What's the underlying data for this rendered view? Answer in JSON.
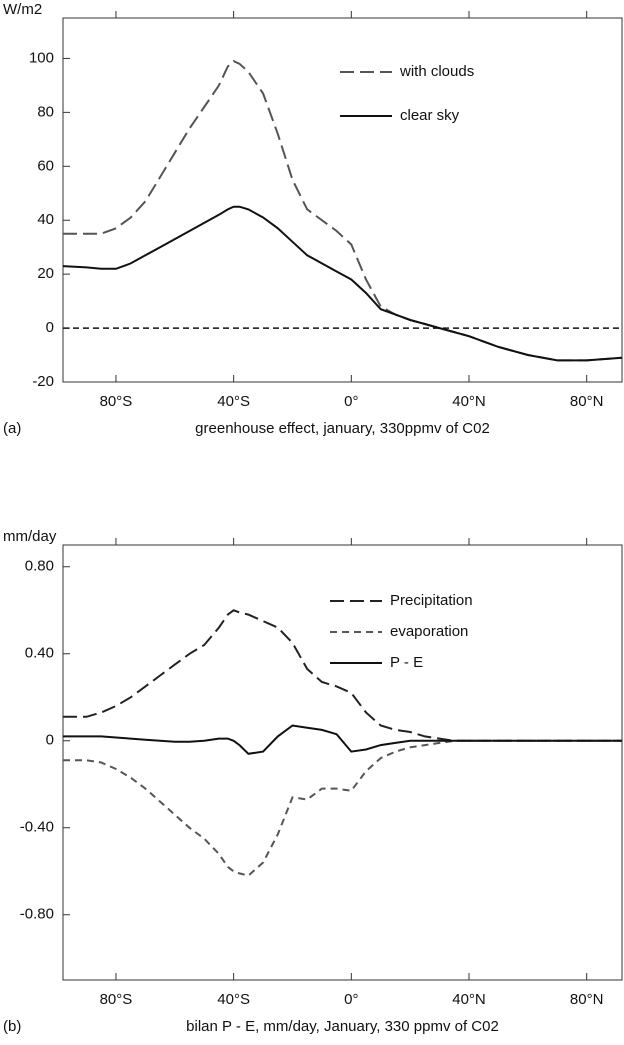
{
  "chart_data": [
    {
      "type": "line",
      "panel_label": "(a)",
      "caption": "greenhouse effect, january, 330ppmv of C02",
      "ylabel": "W/m2",
      "x": [
        -98,
        -90,
        -85,
        -80,
        -75,
        -70,
        -65,
        -60,
        -55,
        -50,
        -45,
        -42,
        -40,
        -38,
        -35,
        -30,
        -25,
        -20,
        -15,
        -10,
        -5,
        0,
        5,
        10,
        15,
        20,
        25,
        30,
        35,
        40,
        50,
        60,
        70,
        80,
        92
      ],
      "series": [
        {
          "name": "with clouds",
          "color": "#555555",
          "style": "long-dash",
          "values": [
            35,
            35,
            35,
            37,
            41,
            47,
            56,
            65,
            74,
            82,
            90,
            97,
            99,
            98,
            95,
            87,
            72,
            55,
            44,
            40,
            36,
            31,
            18,
            8,
            5,
            3,
            1.5,
            0,
            -1.5,
            -3,
            -7,
            -10,
            -12,
            -12,
            -11
          ]
        },
        {
          "name": "clear sky",
          "color": "#111111",
          "style": "solid",
          "values": [
            23,
            22.5,
            22,
            22,
            24,
            27,
            30,
            33,
            36,
            39,
            42,
            44,
            45,
            45,
            44,
            41,
            37,
            32,
            27,
            24,
            21,
            18,
            13,
            7,
            5,
            3,
            1.5,
            0,
            -1.5,
            -3,
            -7,
            -10,
            -12,
            -12,
            -11
          ]
        }
      ],
      "hline": 0,
      "xlim": [
        -98,
        92
      ],
      "xticks": [
        {
          "value": -80,
          "label": "80°S"
        },
        {
          "value": -40,
          "label": "40°S"
        },
        {
          "value": 0,
          "label": "0°"
        },
        {
          "value": 40,
          "label": "40°N"
        },
        {
          "value": 80,
          "label": "80°N"
        }
      ],
      "ylim": [
        -20,
        115
      ],
      "yticks": [
        -20,
        0,
        20,
        40,
        60,
        80,
        100
      ]
    },
    {
      "type": "line",
      "panel_label": "(b)",
      "caption": "bilan P - E, mm/day, January, 330 ppmv of C02",
      "ylabel": "mm/day",
      "x": [
        -98,
        -90,
        -85,
        -80,
        -75,
        -70,
        -65,
        -60,
        -55,
        -50,
        -45,
        -42,
        -40,
        -38,
        -35,
        -30,
        -25,
        -20,
        -15,
        -10,
        -5,
        0,
        5,
        10,
        15,
        20,
        25,
        30,
        35,
        40,
        50,
        60,
        70,
        80,
        92
      ],
      "series": [
        {
          "name": "Precipitation",
          "color": "#222222",
          "style": "long-dash",
          "values": [
            0.11,
            0.11,
            0.13,
            0.16,
            0.2,
            0.25,
            0.3,
            0.35,
            0.4,
            0.44,
            0.52,
            0.58,
            0.6,
            0.59,
            0.58,
            0.55,
            0.52,
            0.45,
            0.33,
            0.27,
            0.25,
            0.22,
            0.13,
            0.07,
            0.05,
            0.04,
            0.02,
            0.01,
            0,
            0,
            0,
            0,
            0,
            0,
            0
          ]
        },
        {
          "name": "evaporation",
          "color": "#555555",
          "style": "short-dash",
          "values": [
            -0.09,
            -0.09,
            -0.1,
            -0.13,
            -0.17,
            -0.22,
            -0.28,
            -0.34,
            -0.4,
            -0.45,
            -0.52,
            -0.58,
            -0.6,
            -0.61,
            -0.62,
            -0.56,
            -0.43,
            -0.26,
            -0.27,
            -0.22,
            -0.22,
            -0.23,
            -0.14,
            -0.08,
            -0.05,
            -0.03,
            -0.02,
            -0.01,
            0,
            0,
            0,
            0,
            0,
            0,
            0
          ]
        },
        {
          "name": "P - E",
          "color": "#111111",
          "style": "solid",
          "values": [
            0.02,
            0.02,
            0.02,
            0.015,
            0.01,
            0.005,
            0,
            -0.005,
            -0.005,
            0,
            0.01,
            0.01,
            0,
            -0.02,
            -0.06,
            -0.05,
            0.02,
            0.07,
            0.06,
            0.05,
            0.03,
            -0.05,
            -0.04,
            -0.02,
            -0.01,
            0,
            0,
            0,
            0,
            0,
            0,
            0,
            0,
            0,
            0
          ]
        }
      ],
      "xlim": [
        -98,
        92
      ],
      "xticks": [
        {
          "value": -80,
          "label": "80°S"
        },
        {
          "value": -40,
          "label": "40°S"
        },
        {
          "value": 0,
          "label": "0°"
        },
        {
          "value": 40,
          "label": "40°N"
        },
        {
          "value": 80,
          "label": "80°N"
        }
      ],
      "ylim": [
        -1.1,
        0.9
      ],
      "yticks": [
        {
          "value": -0.8,
          "label": "-0.80"
        },
        {
          "value": -0.4,
          "label": "-0.40"
        },
        0,
        {
          "value": 0.4,
          "label": "0.40"
        },
        {
          "value": 0.8,
          "label": "0.80"
        }
      ]
    }
  ]
}
